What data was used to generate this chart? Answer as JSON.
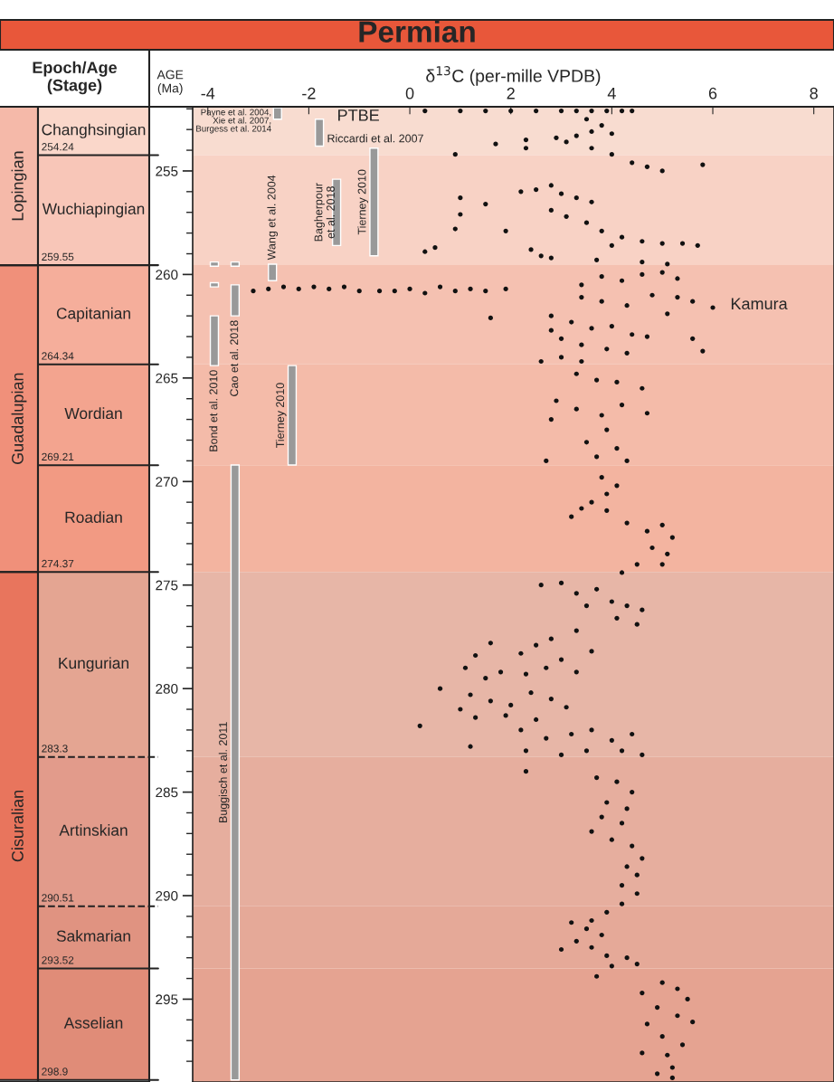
{
  "chart_data": [
    {
      "type": "bar",
      "categories": [
        null
      ],
      "ylim": [
        299,
        251.9
      ],
      "tick_labels": false,
      "series": [
        {
          "name": "Lopingian",
          "color": "#f5b9a9",
          "base": [
            251.9
          ],
          "values": [
            7.65
          ]
        },
        {
          "name": "Guadalupian",
          "color": "#f0907a",
          "base": [
            259.55
          ],
          "values": [
            14.82
          ]
        },
        {
          "name": "Cisuralian",
          "color": "#e8755d",
          "base": [
            274.37
          ],
          "values": [
            24.53
          ]
        }
      ]
    },
    {
      "type": "bar",
      "title": "Epoch/Age\n(Stage)",
      "categories": [
        null
      ],
      "ylim": [
        299,
        251.9
      ],
      "tick_labels": false,
      "series": [
        {
          "name": "Changhsingian",
          "color": "#fad7ca",
          "base": [
            251.9
          ],
          "values": [
            2.34
          ]
        },
        {
          "name": "Wuchiapingian",
          "color": "#f8c6b8",
          "base": [
            254.24
          ],
          "values": [
            5.31
          ]
        },
        {
          "name": "Capitanian",
          "color": "#f5ae9b",
          "base": [
            259.55
          ],
          "values": [
            4.79
          ]
        },
        {
          "name": "Wordian",
          "color": "#f3a48f",
          "base": [
            264.34
          ],
          "values": [
            4.87
          ]
        },
        {
          "name": "Roadian",
          "color": "#f29a83",
          "base": [
            269.21
          ],
          "values": [
            5.16
          ]
        },
        {
          "name": "Kungurian",
          "color": "#e4a592",
          "base": [
            274.37
          ],
          "values": [
            8.93
          ]
        },
        {
          "name": "Artinskian",
          "color": "#e29b8b",
          "base": [
            283.3
          ],
          "values": [
            7.21
          ]
        },
        {
          "name": "Sakmarian",
          "color": "#e09381",
          "base": [
            290.51
          ],
          "values": [
            3.01
          ]
        },
        {
          "name": "Asselian",
          "color": "#e08c78",
          "base": [
            293.52
          ],
          "values": [
            5.38
          ]
        }
      ],
      "ref_lines": [
        {
          "axis": "y",
          "value": 254.24,
          "label": "254.24"
        },
        {
          "axis": "y",
          "value": 259.55,
          "label": "259.55"
        },
        {
          "axis": "y",
          "value": 264.34,
          "label": "264.34"
        },
        {
          "axis": "y",
          "value": 269.21,
          "label": "269.21"
        },
        {
          "axis": "y",
          "value": 274.37,
          "label": "274.37"
        },
        {
          "axis": "y",
          "value": 283.3,
          "label": "283.3",
          "line_style": "dashed"
        },
        {
          "axis": "y",
          "value": 290.51,
          "label": "290.51",
          "line_style": "dashed"
        },
        {
          "axis": "y",
          "value": 293.52,
          "label": "293.52"
        },
        {
          "axis": "y",
          "value": 298.9,
          "label": "298.9"
        }
      ]
    },
    {
      "type": "scatter",
      "title": "Permian",
      "xlabel": "δ$^{13}$C (per-mille VPDB)",
      "ylabel": "AGE\n(Ma)",
      "marker": "circle",
      "xlim": [
        -4.3,
        8.4
      ],
      "xticks": [
        -4,
        -2,
        0,
        2,
        4,
        6,
        8
      ],
      "ylim": [
        299,
        251.9
      ],
      "yticks": [
        {
          "value": 252,
          "label": null
        },
        {
          "value": 253,
          "label": null
        },
        {
          "value": 254,
          "label": null
        },
        255,
        {
          "value": 256,
          "label": null
        },
        {
          "value": 257,
          "label": null
        },
        {
          "value": 258,
          "label": null
        },
        {
          "value": 259,
          "label": null
        },
        260,
        {
          "value": 261,
          "label": null
        },
        {
          "value": 262,
          "label": null
        },
        {
          "value": 263,
          "label": null
        },
        {
          "value": 264,
          "label": null
        },
        265,
        {
          "value": 266,
          "label": null
        },
        {
          "value": 267,
          "label": null
        },
        {
          "value": 268,
          "label": null
        },
        {
          "value": 269,
          "label": null
        },
        270,
        {
          "value": 271,
          "label": null
        },
        {
          "value": 272,
          "label": null
        },
        {
          "value": 273,
          "label": null
        },
        {
          "value": 274,
          "label": null
        },
        275,
        {
          "value": 276,
          "label": null
        },
        {
          "value": 277,
          "label": null
        },
        {
          "value": 278,
          "label": null
        },
        {
          "value": 279,
          "label": null
        },
        280,
        {
          "value": 281,
          "label": null
        },
        {
          "value": 282,
          "label": null
        },
        {
          "value": 283,
          "label": null
        },
        {
          "value": 284,
          "label": null
        },
        285,
        {
          "value": 286,
          "label": null
        },
        {
          "value": 287,
          "label": null
        },
        {
          "value": 288,
          "label": null
        },
        {
          "value": 289,
          "label": null
        },
        290,
        {
          "value": 291,
          "label": null
        },
        {
          "value": 292,
          "label": null
        },
        {
          "value": 293,
          "label": null
        },
        {
          "value": 294,
          "label": null
        },
        295,
        {
          "value": 296,
          "label": null
        },
        {
          "value": 297,
          "label": null
        },
        {
          "value": 298,
          "label": null
        }
      ],
      "bands": [
        {
          "axis": "y",
          "from": 251.9,
          "to": 254.24,
          "color": "#f8dcd0"
        },
        {
          "axis": "y",
          "from": 254.24,
          "to": 259.55,
          "color": "#f8d2c5"
        },
        {
          "axis": "y",
          "from": 259.55,
          "to": 264.34,
          "color": "#f5c1b1"
        },
        {
          "axis": "y",
          "from": 264.34,
          "to": 269.21,
          "color": "#f4bba9"
        },
        {
          "axis": "y",
          "from": 269.21,
          "to": 274.37,
          "color": "#f3b4a0"
        },
        {
          "axis": "y",
          "from": 274.37,
          "to": 283.3,
          "color": "#e7b6a7"
        },
        {
          "axis": "y",
          "from": 283.3,
          "to": 290.51,
          "color": "#e6ae9e"
        },
        {
          "axis": "y",
          "from": 290.51,
          "to": 293.52,
          "color": "#e5a998"
        },
        {
          "axis": "y",
          "from": 293.52,
          "to": 299,
          "color": "#e5a391"
        }
      ],
      "annotations": [
        {
          "text": "PTBE",
          "x": -1.79,
          "y": 252.5
        },
        {
          "text": "Kamura",
          "x": 6.0,
          "y": 261.6
        }
      ],
      "series": [
        {
          "color": "#111111",
          "x": [
            0.3,
            1,
            1.5,
            2,
            2.5,
            3,
            3.3,
            3.6,
            3.9,
            4.2,
            4.4,
            3.5,
            3.8,
            3.6,
            4.0,
            3.3,
            2.9,
            3.1,
            2.3,
            1.7,
            2.3,
            3.6,
            4.0,
            4.4,
            4.7,
            5.0,
            5.8,
            0.9,
            2.2,
            2.5,
            2.8,
            3.0,
            3.3,
            3.6,
            2.8,
            3.1,
            3.5,
            3.8,
            4.2,
            4.6,
            5.0,
            5.4,
            5.7,
            4.0,
            1.0,
            1.0,
            0.9,
            0.5,
            0.3,
            1.5,
            1.9,
            2.4,
            2.6,
            2.8,
            3.7,
            4.6,
            5.1,
            -3.1,
            -2.8,
            -2.5,
            -2.2,
            -1.9,
            -1.6,
            -1.3,
            -1.0,
            -0.6,
            -0.3,
            0.0,
            0.3,
            0.6,
            0.9,
            1.2,
            1.5,
            1.9,
            3.8,
            4.2,
            4.6,
            5.0,
            5.3,
            3.4,
            4.8,
            3.4,
            3.8,
            4.3,
            5.3,
            5.6,
            6.0,
            5.1,
            2.8,
            3.2,
            3.6,
            4.0,
            4.4,
            3.0,
            3.4,
            3.9,
            4.3,
            4.7,
            5.6,
            5.8,
            2.6,
            3.0,
            3.4,
            2.8,
            1.6,
            3.3,
            3.7,
            4.1,
            4.6,
            2.9,
            3.3,
            3.8,
            4.2,
            4.7,
            2.8,
            3.9,
            3.5,
            4.1,
            3.7,
            2.7,
            4.3,
            3.8,
            4.1,
            3.9,
            3.6,
            3.4,
            3.2,
            3.9,
            4.3,
            4.7,
            5.0,
            5.2,
            4.8,
            5.1,
            4.5,
            5.0,
            4.2,
            2.6,
            3.0,
            3.3,
            3.7,
            4.0,
            4.3,
            4.6,
            3.5,
            4.1,
            4.5,
            3.3,
            2.8,
            2.5,
            2.2,
            1.6,
            1.3,
            1.1,
            1.5,
            1.8,
            2.3,
            2.7,
            3.0,
            3.3,
            3.6,
            0.6,
            1.2,
            1.6,
            2.0,
            2.4,
            2.8,
            3.1,
            1.0,
            1.3,
            1.9,
            2.5,
            2.2,
            2.7,
            3.2,
            3.6,
            4.0,
            4.4,
            1.2,
            0.2,
            2.3,
            3.0,
            3.5,
            4.2,
            4.6,
            2.3,
            3.7,
            4.1,
            4.4,
            3.9,
            4.3,
            3.8,
            4.2,
            3.6,
            4.0,
            4.4,
            4.6,
            4.3,
            4.5,
            4.2,
            4.5,
            4.2,
            3.9,
            3.6,
            3.2,
            3.5,
            3.8,
            3.3,
            3.6,
            3.0,
            3.9,
            4.3,
            4.0,
            4.5,
            3.7,
            5.0,
            5.3,
            4.6,
            5.5,
            4.9,
            5.3,
            5.6,
            4.7,
            5.0,
            5.4,
            4.6,
            5.1,
            5.2,
            4.9,
            5.2
          ],
          "values": [
            252.1,
            252.1,
            252.1,
            252.1,
            252.1,
            252.1,
            252.1,
            252.1,
            252.1,
            252.1,
            252.1,
            252.5,
            252.8,
            253.1,
            253.2,
            253.3,
            253.4,
            253.6,
            253.5,
            253.7,
            253.9,
            253.9,
            254.2,
            254.6,
            254.8,
            255.0,
            254.7,
            254.2,
            256.0,
            255.9,
            255.7,
            256.1,
            256.3,
            256.5,
            256.9,
            257.2,
            257.5,
            257.9,
            258.2,
            258.4,
            258.5,
            258.5,
            258.6,
            258.6,
            256.3,
            257.1,
            257.8,
            258.7,
            258.9,
            256.6,
            257.9,
            258.8,
            259.1,
            259.2,
            259.3,
            259.4,
            259.5,
            260.8,
            260.7,
            260.6,
            260.7,
            260.6,
            260.7,
            260.6,
            260.8,
            260.8,
            260.8,
            260.7,
            260.9,
            260.6,
            260.8,
            260.7,
            260.8,
            260.7,
            260.1,
            260.3,
            260.0,
            259.9,
            260.2,
            260.5,
            261.0,
            261.1,
            261.3,
            261.5,
            261.1,
            261.3,
            261.6,
            261.9,
            262.0,
            262.3,
            262.6,
            262.5,
            262.9,
            263.1,
            263.4,
            263.6,
            263.8,
            263.0,
            263.1,
            263.7,
            264.2,
            264.0,
            264.2,
            262.7,
            262.1,
            264.8,
            265.1,
            265.2,
            265.5,
            266.1,
            266.5,
            266.8,
            266.3,
            266.7,
            267.0,
            267.5,
            268.1,
            268.4,
            268.8,
            269.0,
            269.0,
            269.8,
            270.2,
            270.6,
            271.0,
            271.3,
            271.7,
            271.4,
            272.0,
            272.4,
            272.1,
            272.7,
            273.2,
            273.5,
            274.0,
            274.0,
            274.4,
            275.0,
            274.9,
            275.4,
            275.2,
            275.8,
            276.0,
            276.2,
            276.0,
            276.6,
            276.9,
            277.2,
            277.6,
            277.9,
            278.3,
            277.8,
            278.4,
            279.0,
            279.5,
            279.2,
            279.3,
            279.0,
            278.6,
            279.2,
            278.2,
            280.0,
            280.3,
            280.6,
            280.8,
            280.2,
            280.5,
            280.9,
            281.0,
            281.4,
            281.3,
            281.5,
            282.0,
            282.4,
            282.2,
            282.0,
            282.5,
            282.2,
            282.8,
            281.8,
            283.0,
            283.2,
            283.0,
            283.0,
            283.2,
            284.0,
            284.3,
            284.5,
            285.0,
            285.5,
            285.8,
            286.2,
            286.5,
            286.9,
            287.3,
            287.6,
            288.2,
            288.6,
            289.0,
            289.5,
            289.9,
            290.4,
            290.8,
            291.2,
            291.3,
            291.6,
            291.9,
            292.2,
            292.5,
            292.6,
            292.9,
            293.0,
            293.4,
            293.3,
            293.9,
            294.2,
            294.5,
            294.7,
            295.0,
            295.4,
            295.8,
            296.1,
            296.2,
            296.8,
            297.2,
            297.6,
            297.7,
            298.3,
            298.6,
            298.8
          ]
        },
        {
          "type": "bar",
          "name": "Payne et al. 2004,\nXie et al. 2007,\nBurgess et al. 2014",
          "color": "#999999",
          "x": [
            -2.62
          ],
          "base": [
            251.95
          ],
          "values": [
            0.55
          ]
        },
        {
          "type": "bar",
          "name": "Riccardi et al. 2007",
          "color": "#999999",
          "x": [
            -1.79
          ],
          "base": [
            252.5
          ],
          "values": [
            1.3
          ]
        },
        {
          "type": "bar",
          "name": "Tierney 2010",
          "color": "#999999",
          "x": [
            -0.71
          ],
          "base": [
            253.9
          ],
          "values": [
            5.2
          ]
        },
        {
          "type": "bar",
          "name": "Bagherpour\net al. 2018",
          "color": "#999999",
          "x": [
            -1.45
          ],
          "base": [
            255.4
          ],
          "values": [
            3.2
          ]
        },
        {
          "type": "bar",
          "name": "Wang et al. 2004",
          "color": "#999999",
          "x": [
            -2.72
          ],
          "base": [
            259.5
          ],
          "values": [
            0.8
          ]
        },
        {
          "type": "bar",
          "name": "Bond et al. 2010",
          "color": "#999999",
          "x": [
            -3.87
          ],
          "base": [
            262.0
          ],
          "values": [
            2.4
          ]
        },
        {
          "type": "bar",
          "color": "#999999",
          "x": [
            -3.87,
            -3.87
          ],
          "base": [
            259.4,
            260.4
          ],
          "values": [
            0.2,
            0.2
          ]
        },
        {
          "type": "bar",
          "name": "Cao et al. 2018",
          "color": "#999999",
          "x": [
            -3.46,
            -3.46
          ],
          "base": [
            259.4,
            260.5
          ],
          "values": [
            0.2,
            1.5
          ]
        },
        {
          "type": "bar",
          "name": "Tierney 2010",
          "color": "#999999",
          "x": [
            -2.33
          ],
          "base": [
            264.4
          ],
          "values": [
            4.8
          ]
        },
        {
          "type": "bar",
          "name": "Buggisch et al. 2011",
          "color": "#999999",
          "x": [
            -3.46
          ],
          "base": [
            269.2
          ],
          "values": [
            29.7
          ]
        }
      ]
    }
  ]
}
